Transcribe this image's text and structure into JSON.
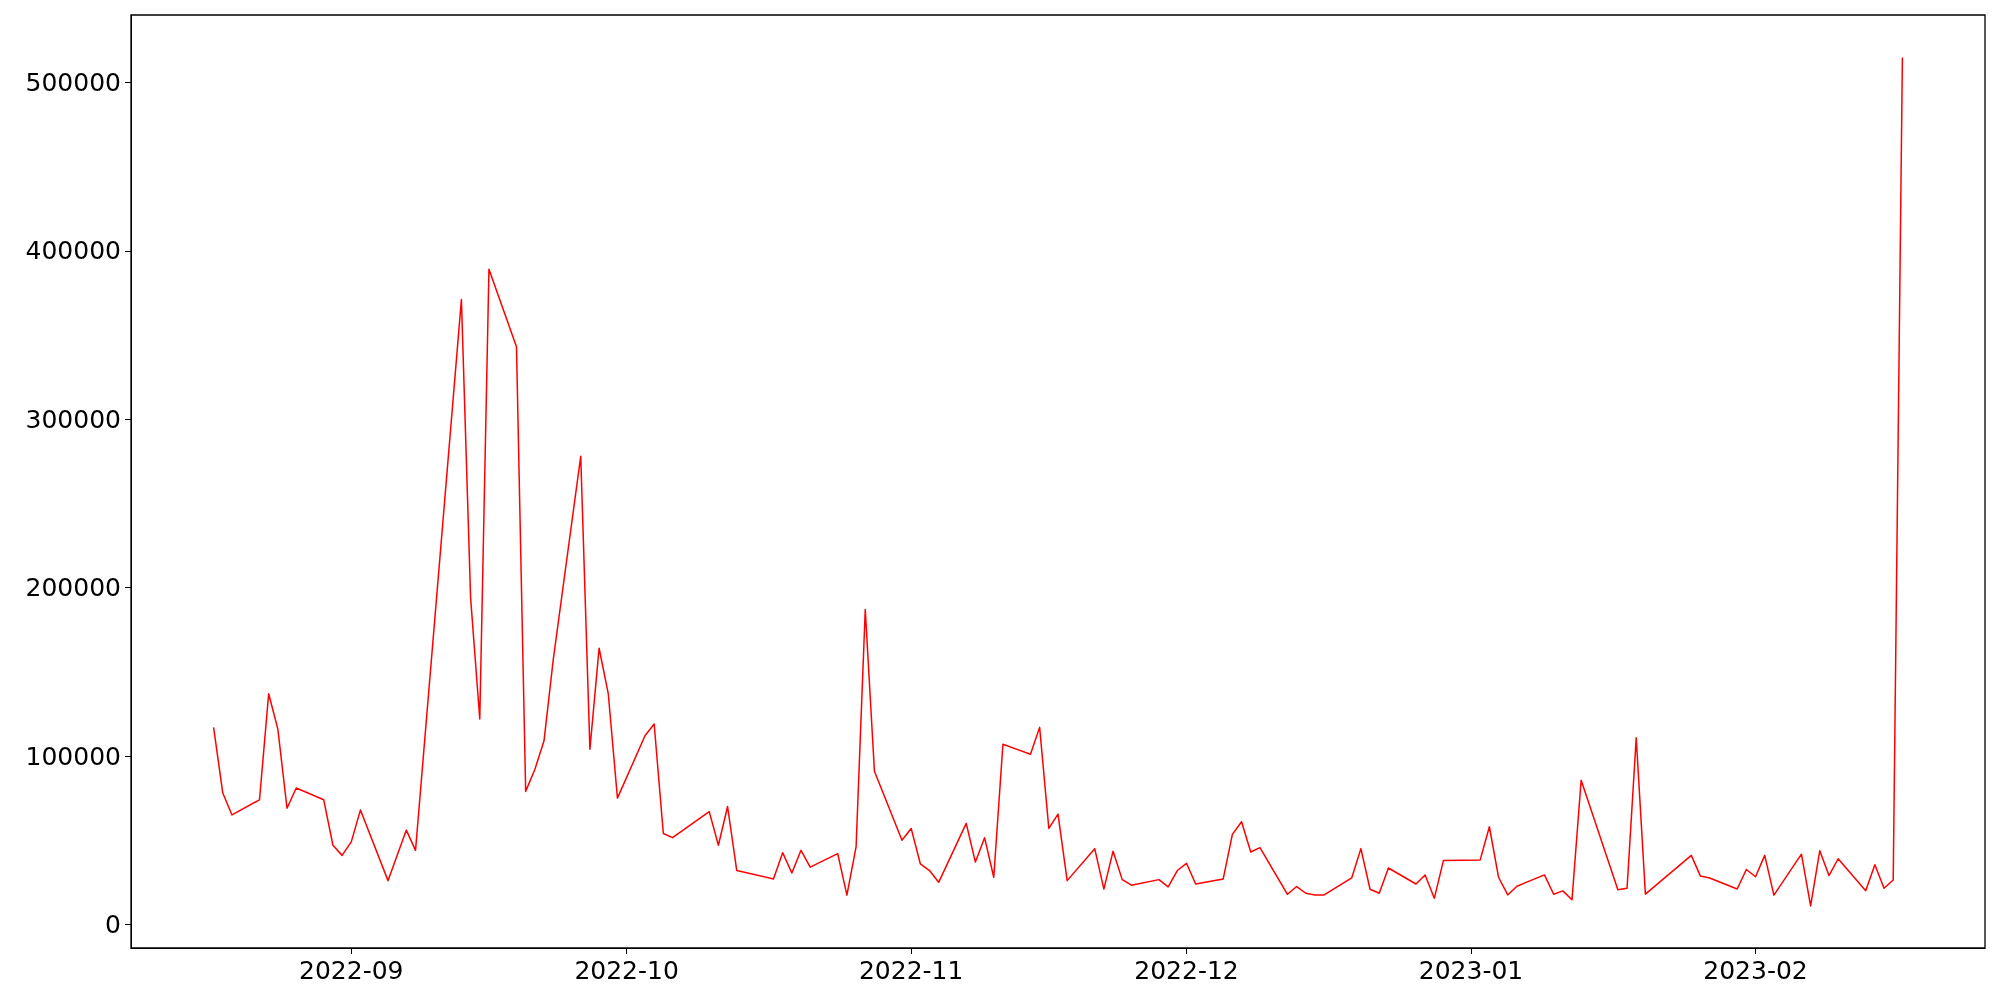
{
  "chart_data": {
    "type": "line",
    "x": [
      "2022-08-17",
      "2022-08-18",
      "2022-08-19",
      "2022-08-22",
      "2022-08-23",
      "2022-08-24",
      "2022-08-25",
      "2022-08-26",
      "2022-08-29",
      "2022-08-30",
      "2022-08-31",
      "2022-09-01",
      "2022-09-02",
      "2022-09-05",
      "2022-09-07",
      "2022-09-08",
      "2022-09-13",
      "2022-09-14",
      "2022-09-15",
      "2022-09-16",
      "2022-09-19",
      "2022-09-20",
      "2022-09-21",
      "2022-09-22",
      "2022-09-23",
      "2022-09-26",
      "2022-09-27",
      "2022-09-28",
      "2022-09-29",
      "2022-09-30",
      "2022-10-03",
      "2022-10-04",
      "2022-10-05",
      "2022-10-06",
      "2022-10-10",
      "2022-10-11",
      "2022-10-12",
      "2022-10-13",
      "2022-10-17",
      "2022-10-18",
      "2022-10-19",
      "2022-10-20",
      "2022-10-21",
      "2022-10-24",
      "2022-10-25",
      "2022-10-26",
      "2022-10-27",
      "2022-10-28",
      "2022-10-31",
      "2022-11-01",
      "2022-11-02",
      "2022-11-03",
      "2022-11-04",
      "2022-11-07",
      "2022-11-08",
      "2022-11-09",
      "2022-11-10",
      "2022-11-11",
      "2022-11-14",
      "2022-11-15",
      "2022-11-16",
      "2022-11-17",
      "2022-11-18",
      "2022-11-21",
      "2022-11-22",
      "2022-11-23",
      "2022-11-24",
      "2022-11-25",
      "2022-11-28",
      "2022-11-29",
      "2022-11-30",
      "2022-12-01",
      "2022-12-02",
      "2022-12-05",
      "2022-12-06",
      "2022-12-07",
      "2022-12-08",
      "2022-12-09",
      "2022-12-12",
      "2022-12-13",
      "2022-12-14",
      "2022-12-15",
      "2022-12-16",
      "2022-12-19",
      "2022-12-20",
      "2022-12-21",
      "2022-12-22",
      "2022-12-23",
      "2022-12-26",
      "2022-12-27",
      "2022-12-28",
      "2022-12-29",
      "2023-01-02",
      "2023-01-03",
      "2023-01-04",
      "2023-01-05",
      "2023-01-06",
      "2023-01-09",
      "2023-01-10",
      "2023-01-11",
      "2023-01-12",
      "2023-01-13",
      "2023-01-17",
      "2023-01-18",
      "2023-01-19",
      "2023-01-20",
      "2023-01-25",
      "2023-01-26",
      "2023-01-27",
      "2023-01-30",
      "2023-01-31",
      "2023-02-01",
      "2023-02-02",
      "2023-02-03",
      "2023-02-06",
      "2023-02-07",
      "2023-02-08",
      "2023-02-09",
      "2023-02-10",
      "2023-02-13",
      "2023-02-14",
      "2023-02-15",
      "2023-02-16",
      "2023-02-17"
    ],
    "values": [
      117000,
      78000,
      65000,
      74000,
      137000,
      116000,
      69000,
      81000,
      74000,
      47000,
      41000,
      49000,
      68000,
      26000,
      56000,
      44000,
      371000,
      194000,
      122000,
      389000,
      343000,
      79000,
      92000,
      109000,
      157000,
      278000,
      104000,
      164000,
      137000,
      75000,
      112000,
      119000,
      54000,
      51500,
      67000,
      47000,
      70000,
      32000,
      27000,
      42600,
      30500,
      44000,
      34000,
      42000,
      17400,
      46000,
      187000,
      91000,
      50000,
      57000,
      36000,
      32000,
      25000,
      60000,
      37000,
      51500,
      28000,
      107000,
      101000,
      117000,
      57000,
      65500,
      26000,
      45000,
      21000,
      43500,
      26600,
      23300,
      26600,
      22300,
      32000,
      36300,
      24000,
      27000,
      53500,
      61000,
      43000,
      45600,
      17900,
      22500,
      18500,
      17500,
      17500,
      27600,
      45000,
      20900,
      18500,
      33500,
      24000,
      29400,
      15500,
      38000,
      38300,
      58000,
      28000,
      17500,
      22700,
      29400,
      17900,
      19900,
      14600,
      85600,
      20600,
      21500,
      110800,
      18000,
      41000,
      28700,
      27600,
      21000,
      32600,
      28300,
      41000,
      17400,
      41700,
      11000,
      43800,
      29000,
      39000,
      20000,
      35400,
      21500,
      26400,
      514800
    ],
    "color": "#ff0000",
    "xlim": [
      "2022-08-08",
      "2023-02-26"
    ],
    "xticks": [
      "2022-09",
      "2022-10",
      "2022-11",
      "2022-12",
      "2023-01",
      "2023-02"
    ],
    "ylim": [
      -14000,
      540000
    ],
    "yticks": [
      0,
      100000,
      200000,
      300000,
      400000,
      500000
    ],
    "grid": false,
    "marker": "none",
    "line_style": "solid"
  }
}
